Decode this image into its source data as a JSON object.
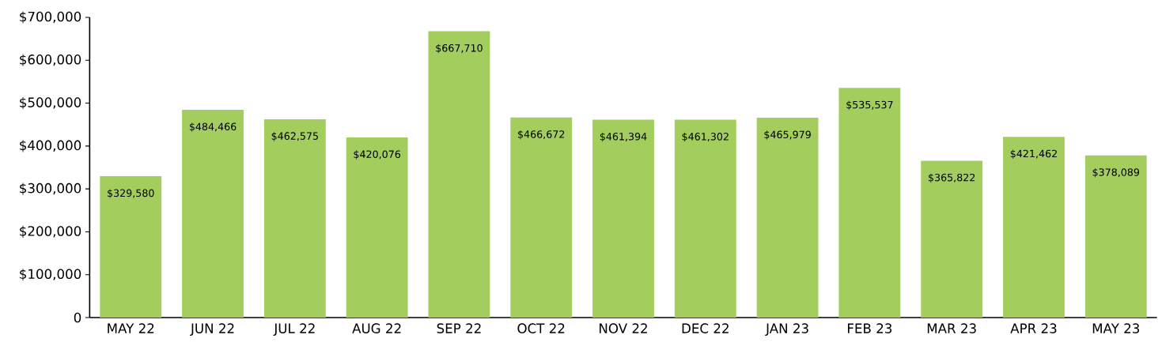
{
  "chart_data": {
    "type": "bar",
    "categories": [
      "MAY 22",
      "JUN 22",
      "JUL 22",
      "AUG 22",
      "SEP 22",
      "OCT 22",
      "NOV 22",
      "DEC 22",
      "JAN 23",
      "FEB 23",
      "MAR 23",
      "APR 23",
      "MAY 23"
    ],
    "values": [
      329580,
      484466,
      462575,
      420076,
      667710,
      466672,
      461394,
      461302,
      465979,
      535537,
      365822,
      421462,
      378089
    ],
    "value_labels": [
      "$329,580",
      "$484,466",
      "$462,575",
      "$420,076",
      "$667,710",
      "$466,672",
      "$461,394",
      "$461,302",
      "$465,979",
      "$535,537",
      "$365,822",
      "$421,462",
      "$378,089"
    ],
    "color": "#a3ce5e",
    "ylim": [
      0,
      700000
    ],
    "yticks": [
      0,
      {
        "value": 100000,
        "label": "$100,000"
      },
      {
        "value": 200000,
        "label": "$200,000"
      },
      {
        "value": 300000,
        "label": "$300,000"
      },
      {
        "value": 400000,
        "label": "$400,000"
      },
      {
        "value": 500000,
        "label": "$500,000"
      },
      {
        "value": 600000,
        "label": "$600,000"
      },
      {
        "value": 700000,
        "label": "$700,000"
      }
    ]
  }
}
